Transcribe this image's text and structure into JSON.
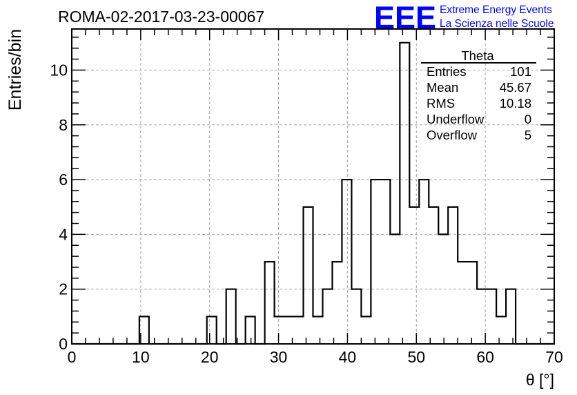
{
  "chart_data": {
    "type": "bar",
    "style": "step-histogram",
    "title": "ROMA-02-2017-03-23-00067",
    "xlabel": "θ [°]",
    "ylabel": "Entries/bin",
    "xlim": [
      0,
      70
    ],
    "ylim": [
      0,
      11.5
    ],
    "grid": true,
    "x_ticks": [
      0,
      10,
      20,
      30,
      40,
      50,
      60,
      70
    ],
    "y_ticks": [
      0,
      2,
      4,
      6,
      8,
      10
    ],
    "bin_width": 1.4,
    "bin_edges": [
      0,
      1.4,
      2.8,
      4.2,
      5.6,
      7,
      8.4,
      9.8,
      11.2,
      12.6,
      14,
      15.4,
      16.8,
      18.2,
      19.6,
      21,
      22.4,
      23.8,
      25.2,
      26.6,
      28,
      29.4,
      30.8,
      32.2,
      33.6,
      35,
      36.4,
      37.8,
      39.2,
      40.6,
      42,
      43.4,
      44.8,
      46.2,
      47.6,
      49,
      50.4,
      51.8,
      53.2,
      54.6,
      56,
      57.4,
      58.8,
      60.2,
      61.6,
      63,
      64.4,
      65.8,
      67.2,
      68.6,
      70
    ],
    "values": [
      0,
      0,
      0,
      0,
      0,
      0,
      0,
      1,
      0,
      0,
      0,
      0,
      0,
      0,
      1,
      0,
      2,
      0,
      1,
      0,
      3,
      1,
      1,
      1,
      5,
      1,
      2,
      3,
      6,
      2,
      1,
      6,
      6,
      4,
      11,
      5,
      6,
      5,
      4,
      5,
      3,
      3,
      2,
      2,
      1,
      2,
      0,
      0,
      0,
      0
    ],
    "color": "#000000"
  },
  "stats_box": {
    "name": "Theta",
    "rows": [
      {
        "label": "Entries",
        "value": "101"
      },
      {
        "label": "Mean",
        "value": "45.67"
      },
      {
        "label": "RMS",
        "value": "10.18"
      },
      {
        "label": "Underflow",
        "value": "0"
      },
      {
        "label": "Overflow",
        "value": "5"
      }
    ]
  },
  "logo": {
    "mark": "EEE",
    "line1": "Extreme Energy Events",
    "line2": "La Scienza nelle Scuole",
    "color": "#0000ff"
  }
}
